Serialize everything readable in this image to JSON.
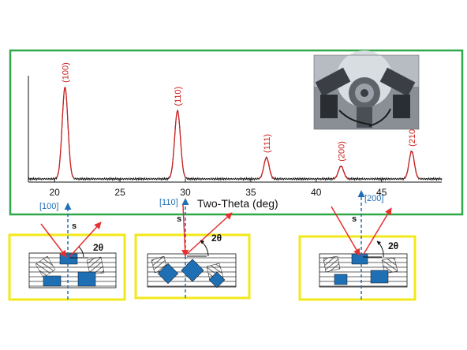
{
  "colors": {
    "frame_green": "#2fa84a",
    "box_yellow": "#f2e81a",
    "pattern_line": "#111111",
    "peak_red": "#cc2222",
    "beam_red": "#e53030",
    "grain_blue": "#1f6fb5",
    "direction_blue": "#1f6fb5"
  },
  "chart_data": {
    "type": "line",
    "xlabel": "Two-Theta (deg)",
    "xlim": [
      18,
      49.6
    ],
    "ylim": [
      0,
      100
    ],
    "xticks": [
      20,
      25,
      30,
      35,
      40,
      45
    ],
    "baseline": 3,
    "peaks": [
      {
        "label": "(100)",
        "x": 20.8,
        "height": 86,
        "width": 0.22
      },
      {
        "label": "(110)",
        "x": 29.4,
        "height": 64,
        "width": 0.22
      },
      {
        "label": "(111)",
        "x": 36.2,
        "height": 20,
        "width": 0.2
      },
      {
        "label": "(200)",
        "x": 41.9,
        "height": 12,
        "width": 0.2
      },
      {
        "label": "(210)",
        "x": 47.3,
        "height": 26,
        "width": 0.2
      }
    ]
  },
  "photo": {
    "icon": "diffractometer-photo"
  },
  "grain_boxes": [
    {
      "id": "box-100",
      "direction": "[100]",
      "scatter_vector": "s",
      "angle": "2θ"
    },
    {
      "id": "box-110",
      "direction": "[110]",
      "scatter_vector": "s",
      "angle": "2θ"
    },
    {
      "id": "box-200",
      "direction": "[200]",
      "scatter_vector": "s",
      "angle": "2θ"
    }
  ]
}
